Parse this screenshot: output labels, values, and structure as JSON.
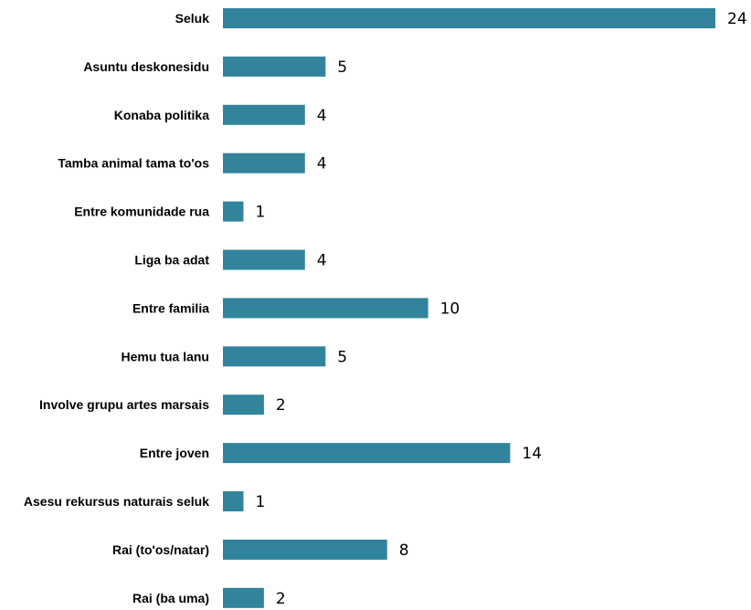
{
  "chart_data": {
    "type": "bar",
    "orientation": "horizontal",
    "categories": [
      "Seluk",
      "Asuntu deskonesidu",
      "Konaba politika",
      "Tamba animal tama to'os",
      "Entre komunidade rua",
      "Liga ba adat",
      "Entre familia",
      "Hemu tua lanu",
      "Involve grupu artes marsais",
      "Entre joven",
      "Asesu rekursus naturais seluk",
      "Rai (to'os/natar)",
      "Rai (ba uma)"
    ],
    "values": [
      24,
      5,
      4,
      4,
      1,
      4,
      10,
      5,
      2,
      14,
      1,
      8,
      2
    ],
    "value_labels": [
      "24",
      "5",
      "4",
      "4",
      "1",
      "4",
      "10",
      "5",
      "2",
      "14",
      "1",
      "8",
      "2"
    ],
    "title": "",
    "xlabel": "",
    "ylabel": "",
    "xlim": [
      0,
      24
    ],
    "grid": false,
    "legend": "none",
    "bar_color": "#31849b"
  }
}
